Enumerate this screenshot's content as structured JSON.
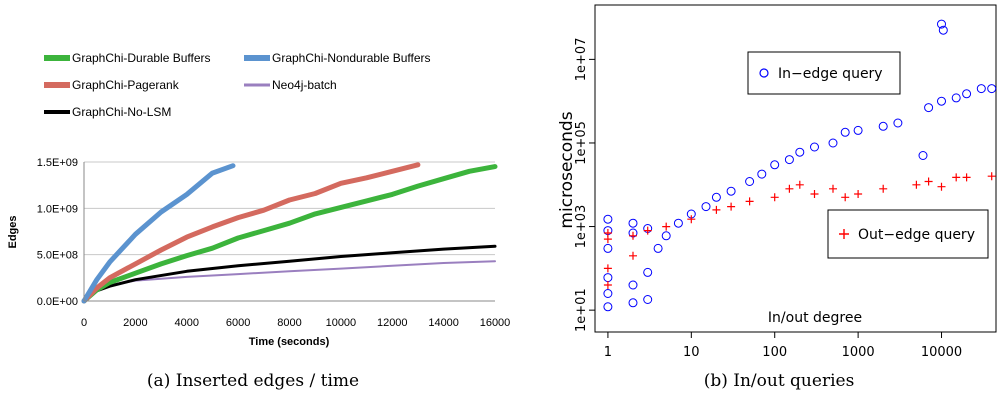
{
  "chart_data": [
    {
      "type": "line",
      "xlabel": "Time (seconds)",
      "ylabel": "Edges",
      "xlim": [
        0,
        16000
      ],
      "ylim": [
        0,
        1500000000
      ],
      "x_ticks": [
        "0",
        "2000",
        "4000",
        "6000",
        "8000",
        "10000",
        "12000",
        "14000",
        "16000"
      ],
      "y_ticks": [
        "0.0E+00",
        "5.0E+08",
        "1.0E+09",
        "1.5E+09"
      ],
      "grid": "horizontal",
      "legend_position": "top",
      "series": [
        {
          "name": "GraphChi-Durable Buffers",
          "color": "#3cb43c",
          "x": [
            0,
            500,
            1000,
            2000,
            3000,
            4000,
            5000,
            6000,
            7000,
            8000,
            9000,
            10000,
            11000,
            12000,
            13000,
            14000,
            15000,
            16000
          ],
          "y": [
            0,
            120000000,
            200000000,
            300000000,
            400000000,
            490000000,
            570000000,
            680000000,
            760000000,
            840000000,
            940000000,
            1010000000,
            1080000000,
            1150000000,
            1240000000,
            1320000000,
            1400000000,
            1450000000
          ]
        },
        {
          "name": "GraphChi-Nondurable Buffers",
          "color": "#5b93cf",
          "x": [
            0,
            500,
            1000,
            2000,
            3000,
            4000,
            5000,
            5800
          ],
          "y": [
            0,
            230000000,
            420000000,
            720000000,
            960000000,
            1150000000,
            1380000000,
            1460000000
          ]
        },
        {
          "name": "GraphChi-Pagerank",
          "color": "#d46a5f",
          "x": [
            0,
            500,
            1000,
            2000,
            3000,
            4000,
            5000,
            6000,
            7000,
            8000,
            9000,
            10000,
            11000,
            12000,
            13000
          ],
          "y": [
            0,
            140000000,
            250000000,
            400000000,
            550000000,
            690000000,
            800000000,
            900000000,
            980000000,
            1090000000,
            1160000000,
            1270000000,
            1330000000,
            1400000000,
            1470000000
          ]
        },
        {
          "name": "Neo4j-batch",
          "color": "#9a7fbf",
          "x": [
            0,
            500,
            1000,
            2000,
            4000,
            6000,
            8000,
            10000,
            12000,
            14000,
            16000
          ],
          "y": [
            0,
            110000000,
            170000000,
            220000000,
            260000000,
            290000000,
            320000000,
            350000000,
            380000000,
            410000000,
            430000000
          ]
        },
        {
          "name": "GraphChi-No-LSM",
          "color": "#000000",
          "x": [
            0,
            500,
            1000,
            2000,
            4000,
            6000,
            8000,
            10000,
            12000,
            14000,
            16000
          ],
          "y": [
            0,
            110000000,
            160000000,
            230000000,
            320000000,
            380000000,
            430000000,
            480000000,
            520000000,
            560000000,
            590000000
          ]
        }
      ]
    },
    {
      "type": "scatter",
      "xlabel": "In/out degree",
      "ylabel": "microseconds",
      "x_scale": "log",
      "y_scale": "log",
      "xlim": [
        0.7,
        45000
      ],
      "ylim": [
        3,
        200000000
      ],
      "x_ticks": [
        "1",
        "10",
        "100",
        "1000",
        "10000"
      ],
      "y_ticks": [
        "1e+01",
        "1e+03",
        "1e+05",
        "1e+07"
      ],
      "grid": false,
      "legend": [
        {
          "name": "In−edge query",
          "marker": "o",
          "color": "#0000ff"
        },
        {
          "name": "Out−edge query",
          "marker": "+",
          "color": "#ff0000"
        }
      ],
      "series": [
        {
          "name": "In−edge query",
          "color": "#0000ff",
          "points": [
            [
              1,
              12
            ],
            [
              1,
              25
            ],
            [
              1,
              60
            ],
            [
              1,
              300
            ],
            [
              1,
              800
            ],
            [
              1,
              1500
            ],
            [
              2,
              15
            ],
            [
              2,
              40
            ],
            [
              2,
              700
            ],
            [
              2,
              1200
            ],
            [
              3,
              18
            ],
            [
              3,
              80
            ],
            [
              3,
              900
            ],
            [
              4,
              300
            ],
            [
              5,
              600
            ],
            [
              7,
              1200
            ],
            [
              10,
              2000
            ],
            [
              15,
              3000
            ],
            [
              20,
              5000
            ],
            [
              30,
              7000
            ],
            [
              50,
              12000
            ],
            [
              70,
              18000
            ],
            [
              100,
              30000
            ],
            [
              150,
              40000
            ],
            [
              200,
              60000
            ],
            [
              300,
              80000
            ],
            [
              500,
              100000
            ],
            [
              700,
              180000
            ],
            [
              1000,
              200000
            ],
            [
              2000,
              250000
            ],
            [
              3000,
              300000
            ],
            [
              6000,
              50000
            ],
            [
              7000,
              700000
            ],
            [
              10000,
              1000000
            ],
            [
              10000,
              70000000
            ],
            [
              10500,
              50000000
            ],
            [
              15000,
              1200000
            ],
            [
              20000,
              1500000
            ],
            [
              30000,
              2000000
            ],
            [
              40000,
              2000000
            ]
          ]
        },
        {
          "name": "Out−edge query",
          "color": "#ff0000",
          "points": [
            [
              1,
              40
            ],
            [
              1,
              100
            ],
            [
              1,
              500
            ],
            [
              1,
              700
            ],
            [
              2,
              200
            ],
            [
              2,
              600
            ],
            [
              3,
              800
            ],
            [
              5,
              1000
            ],
            [
              10,
              1500
            ],
            [
              20,
              2500
            ],
            [
              30,
              3000
            ],
            [
              50,
              4000
            ],
            [
              100,
              5000
            ],
            [
              150,
              8000
            ],
            [
              200,
              10000
            ],
            [
              300,
              6000
            ],
            [
              500,
              8000
            ],
            [
              700,
              5000
            ],
            [
              1000,
              6000
            ],
            [
              2000,
              8000
            ],
            [
              5000,
              10000
            ],
            [
              7000,
              12000
            ],
            [
              10000,
              9000
            ],
            [
              15000,
              15000
            ],
            [
              20000,
              15000
            ],
            [
              40000,
              16000
            ]
          ]
        }
      ]
    }
  ],
  "captions": {
    "a": "(a) Inserted edges / time",
    "b": "(b) In/out queries"
  }
}
